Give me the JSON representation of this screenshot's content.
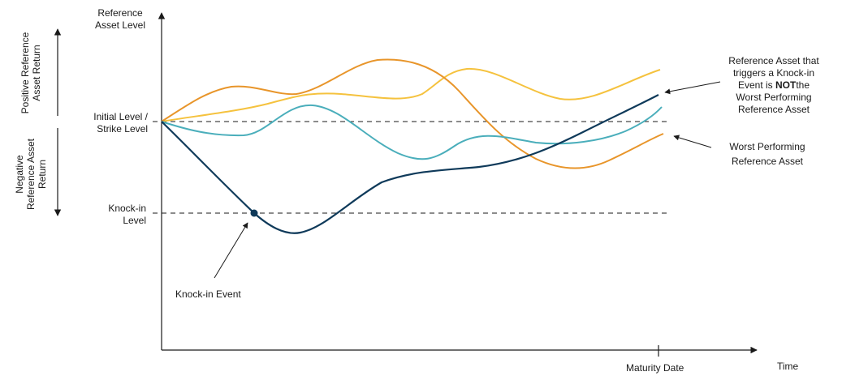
{
  "labels": {
    "y_axis_line1": "Reference",
    "y_axis_line2": "Asset Level",
    "initial_line1": "Initial Level /",
    "initial_line2": "Strike Level",
    "knockin_line1": "Knock-in",
    "knockin_line2": "Level",
    "knockin_event": "Knock-in Event",
    "maturity": "Maturity Date",
    "time": "Time",
    "positive_line1": "Positive Reference",
    "positive_line2": "Asset Return",
    "negative_line1": "Negative",
    "negative_line2": "Reference Asset",
    "negative_line3": "Return",
    "trigger_line1": "Reference Asset that",
    "trigger_line2": "triggers a Knock-in",
    "trigger_line3a": "Event is ",
    "trigger_line3b": "NOT",
    "trigger_line3c": "the",
    "trigger_line4": "Worst Performing",
    "trigger_line5": "Reference Asset",
    "worst_line1": "Worst Performing",
    "worst_line2": "Reference Asset"
  },
  "colors": {
    "navy": "#0f3a5a",
    "teal": "#4aaebb",
    "orange": "#e8952a",
    "yellow": "#f5c23e",
    "axis": "#1a1a1a"
  }
}
